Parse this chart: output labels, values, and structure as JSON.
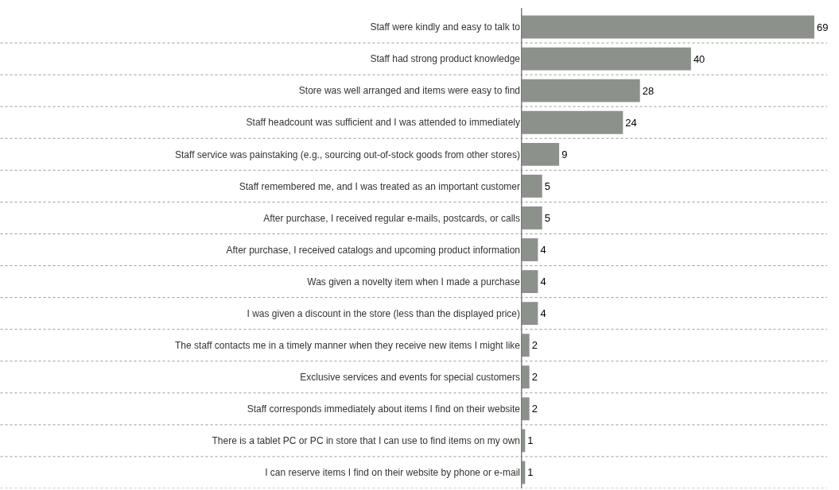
{
  "chart_data": {
    "type": "bar",
    "orientation": "horizontal",
    "categories": [
      "Staff were kindly and easy to talk to",
      "Staff had strong product knowledge",
      "Store was well arranged and items were easy to find",
      "Staff headcount was sufficient and I was attended to immediately",
      "Staff service was painstaking (e.g., sourcing out-of-stock goods from other stores)",
      "Staff remembered me, and I was treated as an important customer",
      "After purchase, I received regular e-mails, postcards, or calls",
      "After purchase, I received catalogs and upcoming product information",
      "Was given a novelty item when I made a purchase",
      "I was given a discount in the store (less than the displayed price)",
      "The staff contacts me in a timely manner when they receive new items I might like",
      "Exclusive services and events for special customers",
      "Staff corresponds immediately about items I find on their website",
      "There is a tablet PC or PC in store that I can use to find items on my own",
      "I can reserve items I find on their website by phone or e-mail"
    ],
    "values": [
      69,
      40,
      28,
      24,
      9,
      5,
      5,
      4,
      4,
      4,
      2,
      2,
      2,
      1,
      1
    ],
    "color": "#8c918c",
    "xlim": [
      0,
      72
    ],
    "data_labels": true,
    "tick_labels": "y"
  }
}
